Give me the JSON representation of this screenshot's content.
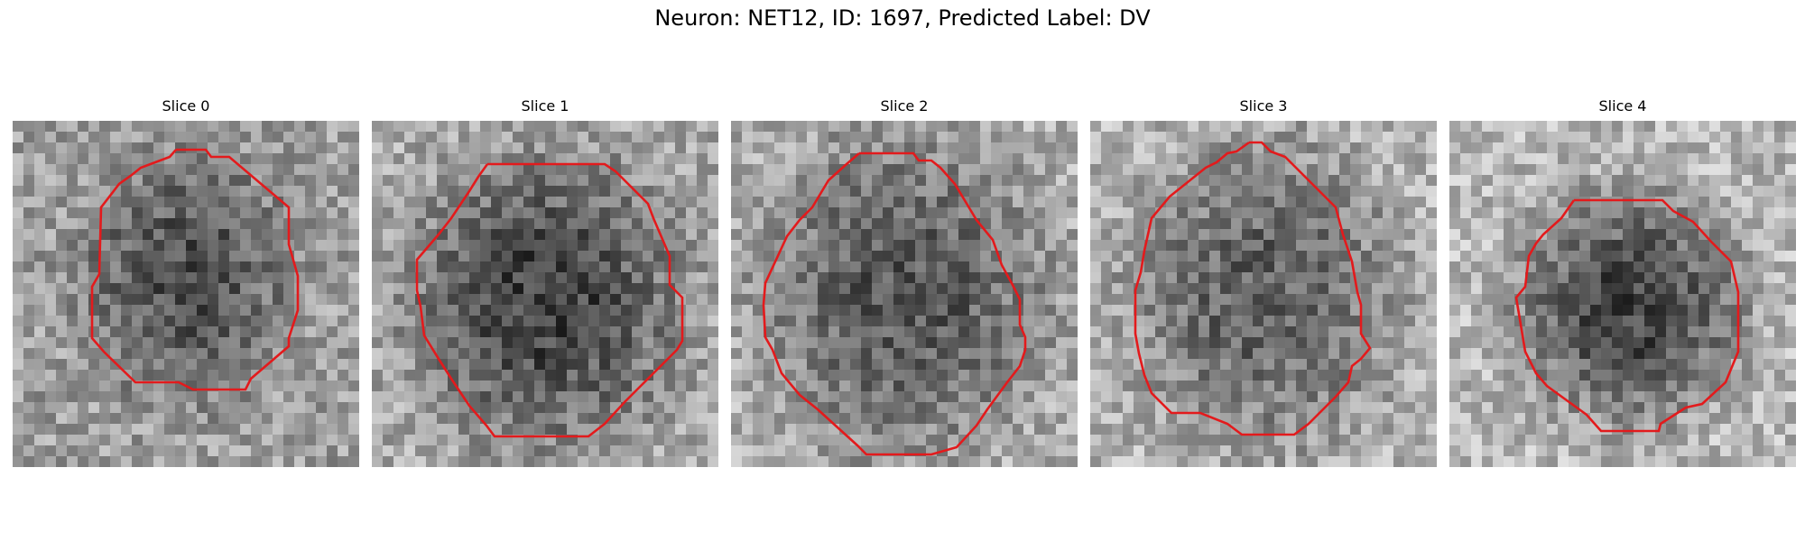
{
  "figure": {
    "title": "Neuron: NET12, ID: 1697, Predicted Label: DV",
    "neuron": "NET12",
    "id": 1697,
    "predicted_label": "DV",
    "contour_color": "#e31a1c"
  },
  "slices": [
    {
      "title": "Slice 0",
      "seed": 11,
      "darkness": 0.55,
      "bg_level": 0.62,
      "blob": [
        0.5,
        0.45,
        0.3,
        0.34
      ]
    },
    {
      "title": "Slice 1",
      "seed": 23,
      "darkness": 0.62,
      "bg_level": 0.66,
      "blob": [
        0.5,
        0.52,
        0.38,
        0.4
      ]
    },
    {
      "title": "Slice 2",
      "seed": 37,
      "darkness": 0.5,
      "bg_level": 0.68,
      "blob": [
        0.5,
        0.5,
        0.4,
        0.44
      ]
    },
    {
      "title": "Slice 3",
      "seed": 41,
      "darkness": 0.45,
      "bg_level": 0.7,
      "blob": [
        0.5,
        0.5,
        0.38,
        0.42
      ]
    },
    {
      "title": "Slice 4",
      "seed": 59,
      "darkness": 0.62,
      "bg_level": 0.72,
      "blob": [
        0.52,
        0.54,
        0.32,
        0.32
      ]
    }
  ]
}
